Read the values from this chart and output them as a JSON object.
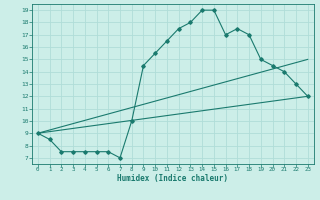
{
  "xlabel": "Humidex (Indice chaleur)",
  "bg_color": "#cceee8",
  "grid_color": "#b0ddd8",
  "line_color": "#1a7a6e",
  "xlim": [
    -0.5,
    23.5
  ],
  "ylim": [
    6.5,
    19.5
  ],
  "xticks": [
    0,
    1,
    2,
    3,
    4,
    5,
    6,
    7,
    8,
    9,
    10,
    11,
    12,
    13,
    14,
    15,
    16,
    17,
    18,
    19,
    20,
    21,
    22,
    23
  ],
  "yticks": [
    7,
    8,
    9,
    10,
    11,
    12,
    13,
    14,
    15,
    16,
    17,
    18,
    19
  ],
  "line1_x": [
    0,
    1,
    2,
    3,
    4,
    5,
    6,
    7,
    8,
    9,
    10,
    11,
    12,
    13,
    14,
    15,
    16,
    17,
    18,
    19,
    20,
    21,
    22,
    23
  ],
  "line1_y": [
    9.0,
    8.5,
    7.5,
    7.5,
    7.5,
    7.5,
    7.5,
    7.0,
    10.0,
    14.5,
    15.5,
    16.5,
    17.5,
    18.0,
    19.0,
    19.0,
    17.0,
    17.5,
    17.0,
    15.0,
    14.5,
    14.0,
    13.0,
    12.0
  ],
  "line2_x": [
    0,
    23
  ],
  "line2_y": [
    9.0,
    15.0
  ],
  "line3_x": [
    0,
    23
  ],
  "line3_y": [
    9.0,
    12.0
  ]
}
